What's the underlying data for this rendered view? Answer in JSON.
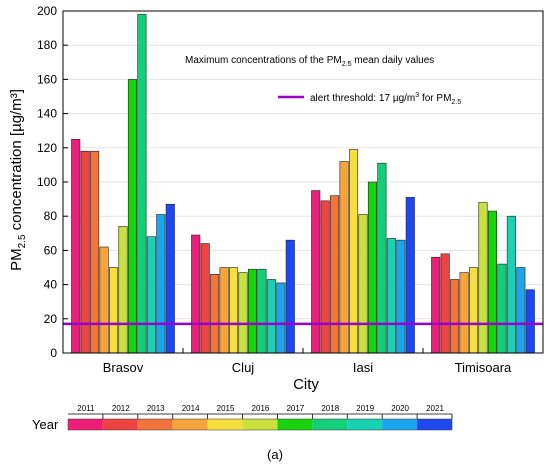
{
  "chart_data": {
    "type": "bar",
    "categories": [
      "Brasov",
      "Cluj",
      "Iasi",
      "Timisoara"
    ],
    "xlabel": "City",
    "ylabel": "PM",
    "ylabel_sub": "2.5",
    "ylabel_rest": " concentration [µg/m³]",
    "ylim": [
      0,
      200
    ],
    "yticks": [
      0,
      20,
      40,
      60,
      80,
      100,
      120,
      140,
      160,
      180,
      200
    ],
    "grid": true,
    "annotation": {
      "text": "Maximum concentrations of the PM",
      "sub": "2.5",
      "rest": " mean daily values"
    },
    "threshold": {
      "value": 17,
      "color": "#9a00cc",
      "label_a": "alert threshold: 17 µg/m",
      "label_sup": "3",
      "label_b": " for PM",
      "label_sub": "2.5"
    },
    "series": [
      {
        "name": "2011",
        "color": "#ee1e78",
        "values": [
          125,
          69,
          95,
          56
        ]
      },
      {
        "name": "2012",
        "color": "#ef4242",
        "values": [
          118,
          64,
          89,
          58
        ]
      },
      {
        "name": "2013",
        "color": "#f1753a",
        "values": [
          118,
          46,
          92,
          43
        ]
      },
      {
        "name": "2014",
        "color": "#f6a53d",
        "values": [
          62,
          50,
          112,
          47
        ]
      },
      {
        "name": "2015",
        "color": "#f6de3c",
        "values": [
          50,
          50,
          119,
          50
        ]
      },
      {
        "name": "2016",
        "color": "#c9e03d",
        "values": [
          74,
          47,
          81,
          88
        ]
      },
      {
        "name": "2017",
        "color": "#18d40f",
        "values": [
          160,
          49,
          100,
          83
        ]
      },
      {
        "name": "2018",
        "color": "#14cf7a",
        "values": [
          198,
          49,
          111,
          52
        ]
      },
      {
        "name": "2019",
        "color": "#18d2b4",
        "values": [
          68,
          43,
          67,
          80
        ]
      },
      {
        "name": "2020",
        "color": "#1ca4ef",
        "values": [
          81,
          41,
          66,
          50
        ]
      },
      {
        "name": "2021",
        "color": "#1f49ee",
        "values": [
          87,
          66,
          91,
          37
        ]
      }
    ],
    "colorbar_title": "Year"
  },
  "caption": "(a)"
}
